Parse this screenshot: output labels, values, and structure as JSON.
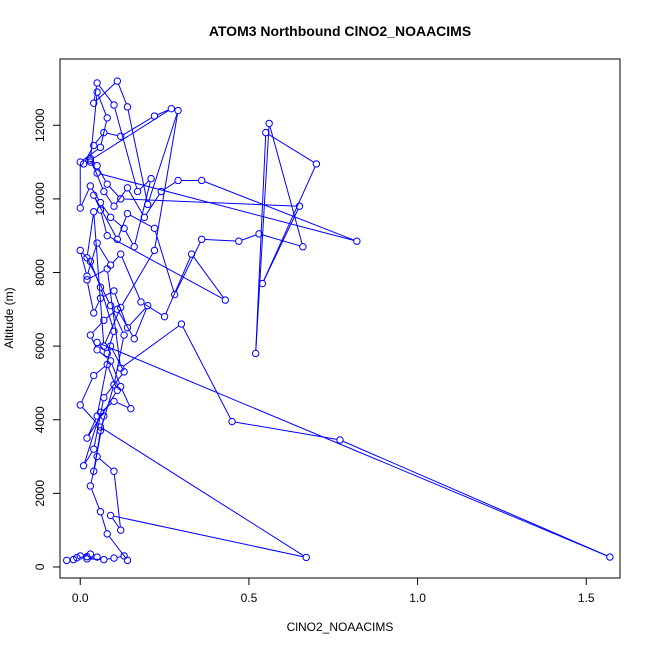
{
  "chart_data": {
    "type": "scatter",
    "title": "ATOM3 Northbound ClNO2_NOAACIMS",
    "xlabel": "ClNO2_NOAACIMS",
    "ylabel": "Altitude (m)",
    "xlim": [
      -0.06,
      1.6
    ],
    "ylim": [
      -300,
      13800
    ],
    "x_ticks": [
      0.0,
      0.5,
      1.0,
      1.5
    ],
    "x_tick_labels": [
      "0.0",
      "0.5",
      "1.0",
      "1.5"
    ],
    "y_ticks": [
      0,
      2000,
      4000,
      6000,
      8000,
      10000,
      12000
    ],
    "y_tick_labels": [
      "0",
      "2000",
      "4000",
      "6000",
      "8000",
      "10000",
      "12000"
    ],
    "grid": false,
    "legend": "none",
    "series": [
      {
        "color": "#0000ff",
        "marker": "open-circle",
        "line": true,
        "x": [
          -0.04,
          -0.02,
          -0.01,
          0.02,
          0.0,
          0.03,
          0.05,
          0.02,
          0.07,
          0.1,
          0.13,
          0.14,
          0.08,
          0.06,
          0.03,
          0.05,
          0.1,
          0.12,
          0.09,
          0.67,
          0.06,
          0.0,
          0.04,
          0.08,
          0.11,
          0.02,
          0.05,
          0.09,
          0.13,
          0.07,
          0.04,
          0.01,
          0.06,
          0.1,
          0.15,
          0.12,
          0.09,
          0.05,
          0.03,
          0.07,
          0.11,
          0.16,
          0.2,
          0.14,
          0.1,
          0.06,
          0.04,
          0.02,
          0.08,
          0.12,
          0.3,
          0.45,
          0.77,
          1.57,
          0.05,
          0.08,
          0.1,
          0.06,
          0.03,
          0.0,
          0.02,
          0.05,
          0.09,
          0.12,
          0.18,
          0.25,
          0.33,
          0.43,
          0.08,
          0.06,
          0.04,
          0.11,
          0.14,
          0.22,
          0.28,
          0.36,
          0.47,
          0.53,
          0.66,
          0.56,
          0.52,
          0.55,
          0.7,
          0.54,
          0.65,
          0.12,
          0.08,
          0.05,
          0.03,
          0.07,
          0.1,
          0.14,
          0.19,
          0.24,
          0.29,
          0.36,
          0.82,
          0.05,
          0.03,
          0.01,
          0.04,
          0.07,
          0.12,
          0.22,
          0.27,
          0.03,
          0.05,
          0.08,
          0.06,
          0.0,
          0.0,
          0.03,
          0.06,
          0.09,
          0.13,
          0.16,
          0.21,
          0.17,
          0.1,
          0.05,
          0.04,
          0.11,
          0.14,
          0.2,
          0.29,
          0.22,
          0.12,
          0.07,
          0.04,
          0.02,
          0.09,
          0.13,
          0.1,
          0.06,
          0.04,
          0.07
        ],
        "y": [
          180,
          200,
          250,
          280,
          300,
          350,
          270,
          220,
          200,
          240,
          300,
          180,
          900,
          1500,
          2200,
          3000,
          2600,
          1000,
          1400,
          260,
          3800,
          4400,
          5200,
          5500,
          4800,
          3500,
          4100,
          6000,
          5300,
          4600,
          3200,
          2750,
          4200,
          4500,
          4300,
          4900,
          5600,
          5900,
          6300,
          6700,
          7000,
          6200,
          7100,
          6500,
          7500,
          7300,
          6900,
          7800,
          8100,
          5400,
          6600,
          3950,
          3450,
          270,
          6100,
          5800,
          6400,
          7600,
          8300,
          8600,
          7900,
          8800,
          8200,
          8500,
          7200,
          6800,
          8500,
          7250,
          9000,
          9700,
          10100,
          8900,
          9600,
          9200,
          7400,
          8900,
          8850,
          9050,
          8700,
          12050,
          5800,
          11800,
          10950,
          7700,
          9800,
          10000,
          10400,
          10900,
          11100,
          10200,
          9800,
          10300,
          9500,
          10200,
          10500,
          10500,
          8850,
          10700,
          11000,
          10950,
          11450,
          11800,
          11700,
          12250,
          12450,
          11050,
          12900,
          12200,
          11400,
          11000,
          9750,
          10350,
          9900,
          9500,
          9200,
          8700,
          10550,
          10200,
          12550,
          13150,
          12600,
          13200,
          12500,
          9850,
          12400,
          8600,
          7050,
          6000,
          9650,
          8400,
          7100,
          6300,
          4950,
          3700,
          2600,
          4100
        ]
      }
    ]
  }
}
